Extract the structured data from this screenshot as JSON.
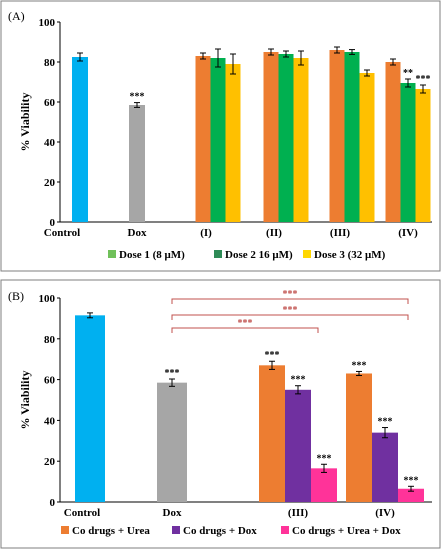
{
  "chart_data": [
    {
      "type": "bar",
      "panel_label": "(A)",
      "ylabel": "% Viability",
      "ylim": [
        0,
        100
      ],
      "yticks": [
        0,
        20,
        40,
        60,
        80,
        100
      ],
      "categories": [
        "Control",
        "Dox",
        "(I)",
        "(II)",
        "(III)",
        "(IV)"
      ],
      "single_bars": [
        {
          "category": "Control",
          "value": 82.5,
          "error": 2.0,
          "color": "#00b0f0",
          "annotation": ""
        },
        {
          "category": "Dox",
          "value": 58.5,
          "error": 1.2,
          "color": "#a6a6a6",
          "annotation": "***"
        }
      ],
      "series": [
        {
          "name": "Dose 1 (8 μM)",
          "color": "#ed7d31",
          "values": [
            null,
            null,
            83,
            85,
            86,
            80
          ],
          "errors": [
            null,
            null,
            1.5,
            1.5,
            1.5,
            1.5
          ],
          "annotations": [
            "",
            "",
            "",
            "",
            "",
            ""
          ]
        },
        {
          "name": "Dose 2 16 μM)",
          "color": "#00b050",
          "values": [
            null,
            null,
            82,
            84,
            85,
            69.5
          ],
          "errors": [
            null,
            null,
            4.5,
            1.5,
            1.2,
            2.0
          ],
          "annotations": [
            "",
            "",
            "",
            "",
            "",
            "**"
          ]
        },
        {
          "name": "Dose 3 (32 μM)",
          "color": "#ffc000",
          "values": [
            null,
            null,
            79,
            82,
            74.5,
            66.5
          ],
          "errors": [
            null,
            null,
            5.0,
            3.5,
            1.5,
            2.0
          ],
          "annotations": [
            "",
            "",
            "",
            "",
            "",
            "***"
          ]
        }
      ],
      "legend": {
        "position": "bottom",
        "items": [
          {
            "label": "Dose 1 (8 μM)",
            "color": "#70c05a"
          },
          {
            "label": "Dose 2 16 μM)",
            "color": "#2e8b57"
          },
          {
            "label": "Dose 3 (32 μM)",
            "color": "#ffd700"
          }
        ]
      },
      "grid": false
    },
    {
      "type": "bar",
      "panel_label": "(B)",
      "ylabel": "% Viability",
      "ylim": [
        0,
        100
      ],
      "yticks": [
        0,
        20,
        40,
        60,
        80,
        100
      ],
      "categories": [
        "Control",
        "Dox",
        "(III)",
        "(IV)"
      ],
      "single_bars": [
        {
          "category": "Control",
          "value": 91.5,
          "error": 1.2,
          "color": "#00b0f0",
          "annotation": ""
        },
        {
          "category": "Dox",
          "value": 58.5,
          "error": 1.8,
          "color": "#a6a6a6",
          "annotation": "***"
        }
      ],
      "series": [
        {
          "name": "Co drugs + Urea",
          "color": "#ed7d31",
          "values": [
            null,
            null,
            67,
            63
          ],
          "errors": [
            null,
            null,
            2.0,
            1.0
          ],
          "annotations": [
            "",
            "",
            "***",
            "***"
          ]
        },
        {
          "name": "Co drugs + Dox",
          "color": "#7030a0",
          "values": [
            null,
            null,
            55,
            34
          ],
          "errors": [
            null,
            null,
            2.0,
            2.5
          ],
          "annotations": [
            "",
            "",
            "***",
            "***"
          ]
        },
        {
          "name": "Co drugs + Urea + Dox",
          "color": "#ff3399",
          "values": [
            null,
            null,
            16.5,
            6.5
          ],
          "errors": [
            null,
            null,
            2.0,
            1.2
          ],
          "annotations": [
            "",
            "",
            "***",
            "***"
          ]
        }
      ],
      "brackets": [
        {
          "from": "Dox",
          "to": "(III)",
          "label": "***"
        },
        {
          "from": "Dox",
          "to": "(IV)",
          "label": "***"
        },
        {
          "from": "Dox",
          "to": "(IV)",
          "label": "***"
        }
      ],
      "legend": {
        "position": "bottom",
        "items": [
          {
            "label": "Co drugs + Urea",
            "color": "#ed7d31"
          },
          {
            "label": "Co drugs + Dox",
            "color": "#7030a0"
          },
          {
            "label": "Co drugs + Urea + Dox",
            "color": "#ff3399"
          }
        ]
      },
      "grid": false
    }
  ]
}
